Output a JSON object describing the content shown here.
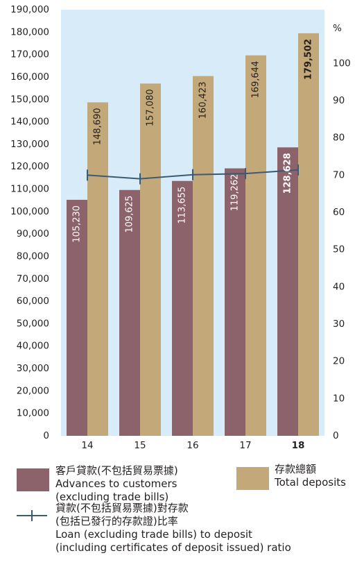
{
  "chart_data": {
    "type": "bar",
    "categories": [
      "14",
      "15",
      "16",
      "17",
      "18"
    ],
    "highlight_category": "18",
    "series": [
      {
        "name": "客戶貸款(不包括貿易票據) Advances to customers (excluding trade bills)",
        "values": [
          105230,
          109625,
          113655,
          119262,
          128628
        ],
        "labels": [
          "105,230",
          "109,625",
          "113,655",
          "119,262",
          "128,628"
        ],
        "color": "#8d636b"
      },
      {
        "name": "存款總額 Total deposits",
        "values": [
          148690,
          157080,
          160423,
          169644,
          179502
        ],
        "labels": [
          "148,690",
          "157,080",
          "160,423",
          "169,644",
          "179,502"
        ],
        "color": "#c3a87a"
      }
    ],
    "line_series": {
      "name": "貸款(不包括貿易票據)對存款(包括已發行的存款證)比率 Loan (excluding trade bills) to deposit (including certificates of deposit issued) ratio",
      "values": [
        70.0,
        69.0,
        70.1,
        70.4,
        71.4
      ],
      "color": "#3c5a6e",
      "axis": "right"
    },
    "ylim": [
      0,
      190000
    ],
    "y_ticks": [
      "0",
      "10,000",
      "20,000",
      "30,000",
      "40,000",
      "50,000",
      "60,000",
      "70,000",
      "80,000",
      "90,000",
      "100,000",
      "110,000",
      "120,000",
      "130,000",
      "140,000",
      "150,000",
      "160,000",
      "170,000",
      "180,000",
      "190,000"
    ],
    "y2lim": [
      0,
      114.4
    ],
    "y2_ticks": [
      "0",
      "10",
      "20",
      "30",
      "40",
      "50",
      "60",
      "70",
      "80",
      "90",
      "100"
    ],
    "y2_unit": "%",
    "background_color": "#d7ecf8",
    "grid": false
  },
  "legend": {
    "advances": {
      "line1": "客戶貸款(不包括貿易票據)",
      "line2": "Advances to customers",
      "line3": "(excluding trade bills)",
      "color": "#8d636b"
    },
    "deposits": {
      "line1": "存款總額",
      "line2": "Total deposits",
      "color": "#c3a87a"
    },
    "ratio": {
      "line1": "貸款(不包括貿易票據)對存款",
      "line2": "(包括已發行的存款證)比率",
      "line3": "Loan (excluding trade bills) to deposit",
      "line4": "(including certificates of deposit issued) ratio",
      "color": "#3c5a6e"
    }
  }
}
